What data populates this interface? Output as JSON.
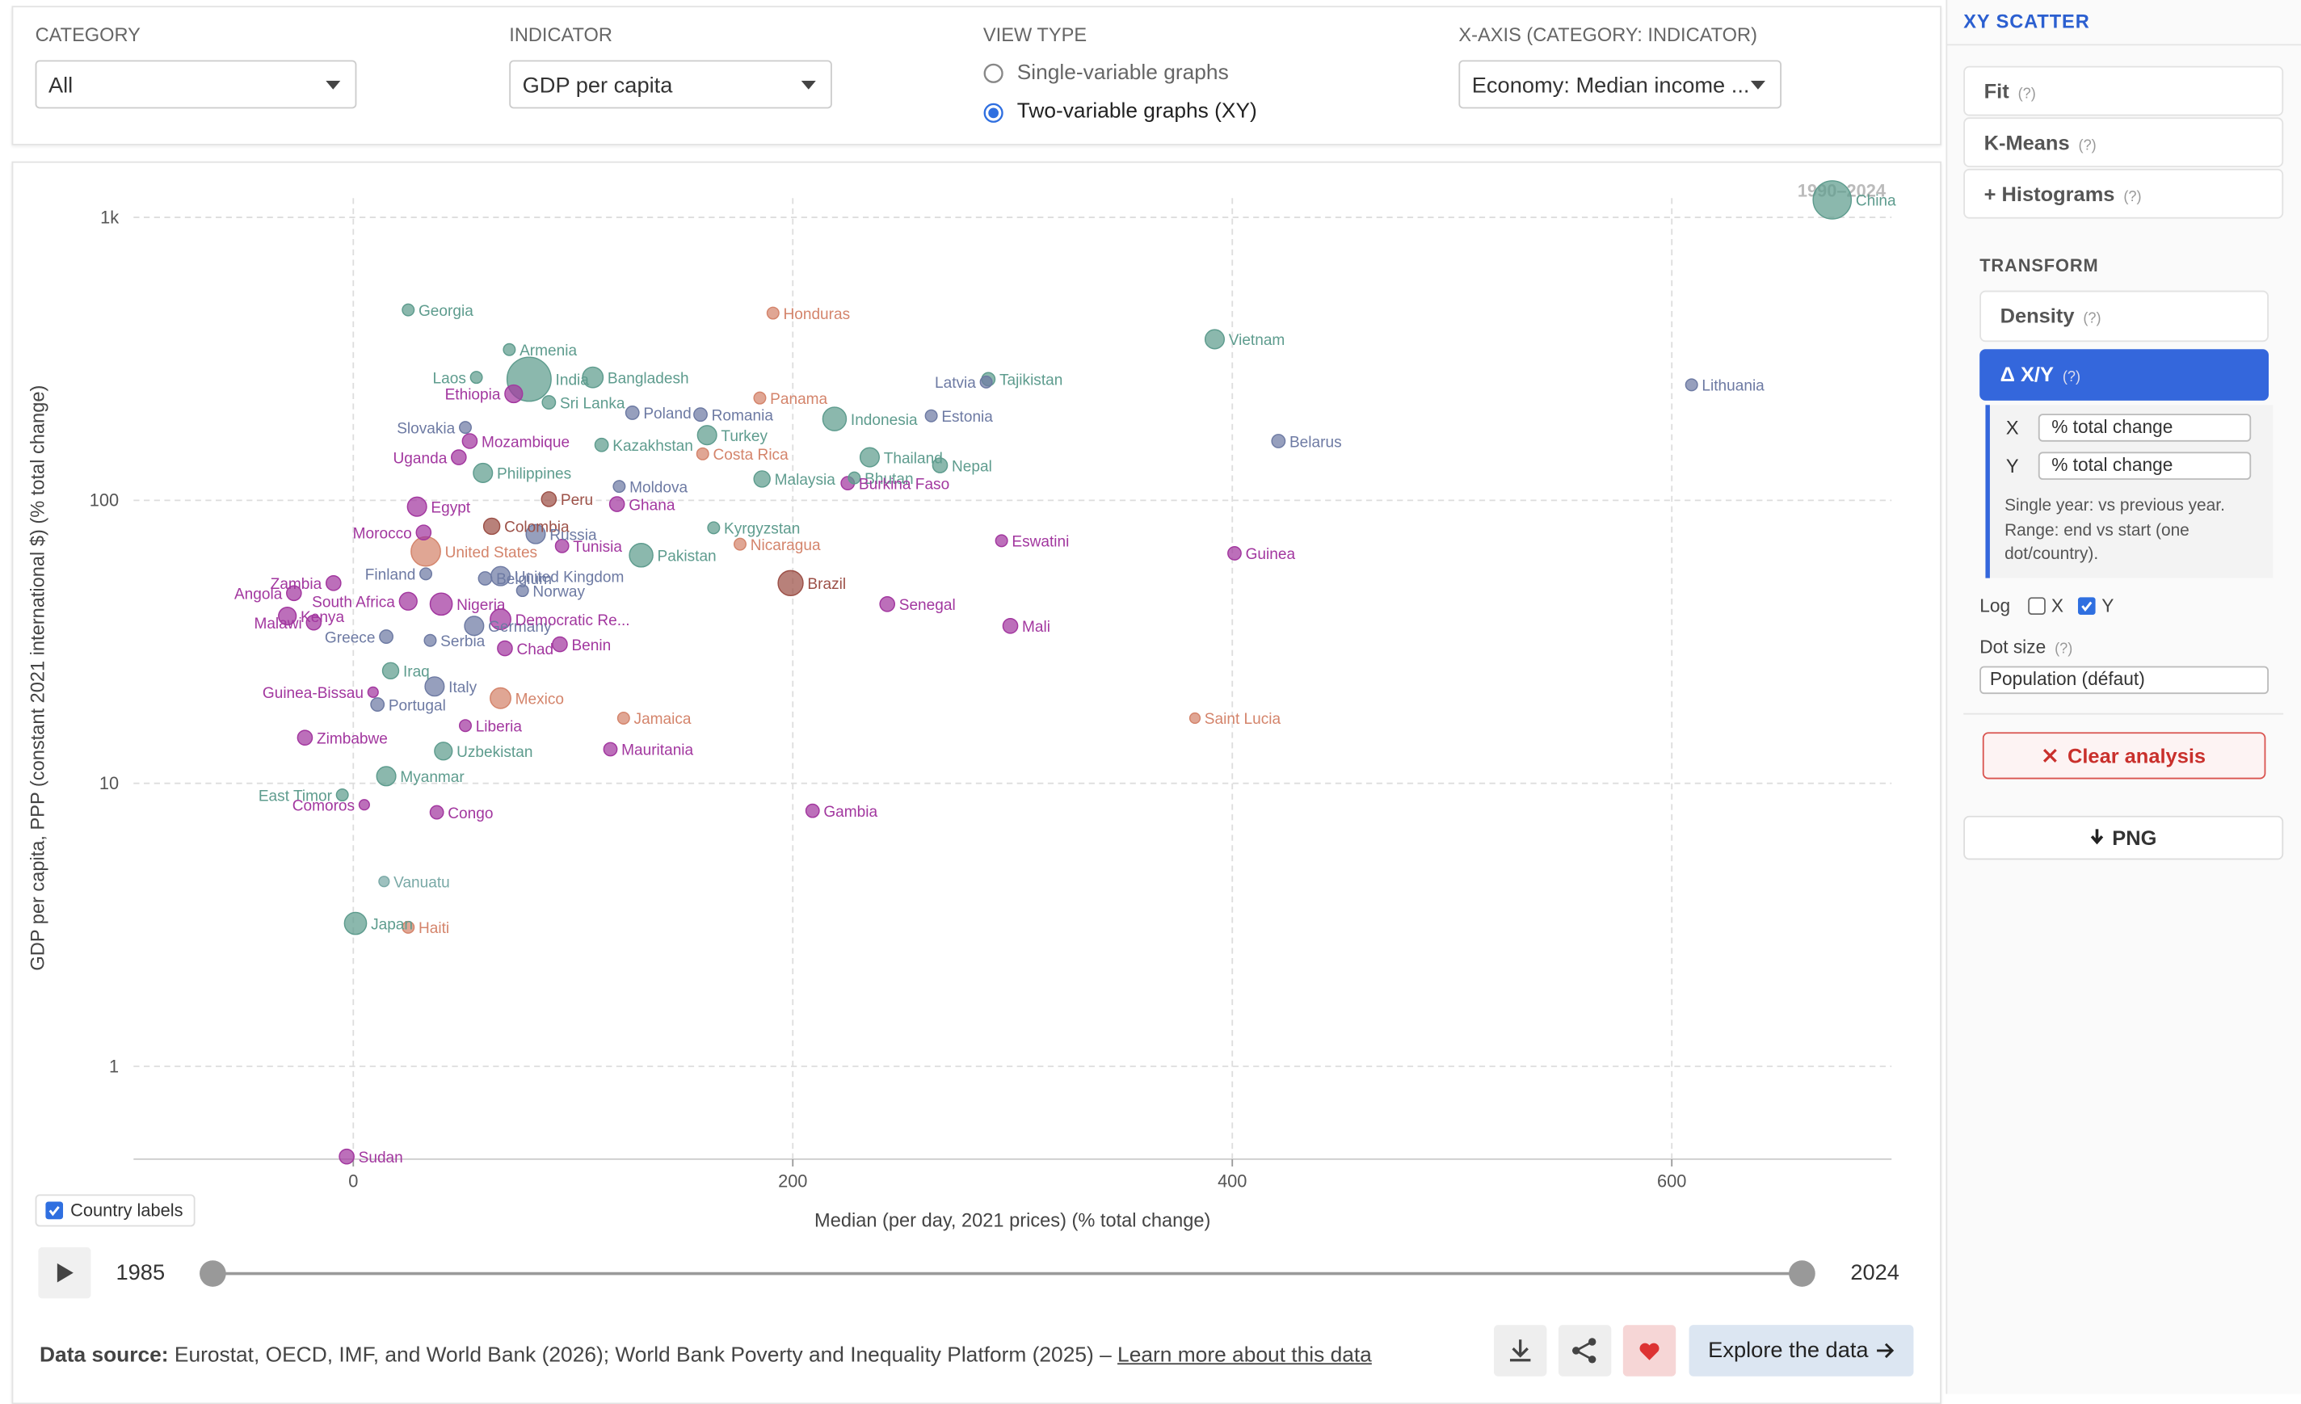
{
  "filters": [
    {
      "label": "CATEGORY",
      "value": "All"
    },
    {
      "label": "INDICATOR",
      "value": "GDP per capita"
    }
  ],
  "view_type": {
    "label": "VIEW TYPE",
    "options": [
      "Single-variable graphs",
      "Two-variable graphs (XY)"
    ]
  },
  "x_axis_select": {
    "label": "X-AXIS (CATEGORY: INDICATOR)",
    "value": "Economy: Median income ..."
  },
  "chart_data": {
    "type": "scatter",
    "x_label": "Median (per day, 2021 prices) (% total change)",
    "y_label": "GDP per capita, PPP (constant 2021 international $) (% total change)",
    "year_label": "1990–2024",
    "xlim": [
      -100,
      700
    ],
    "ylim": [
      0.47,
      1170
    ],
    "xticks": [
      0,
      200,
      400,
      600
    ],
    "yticks": [
      1,
      10,
      100,
      {
        "value": 1000,
        "label": "1k"
      }
    ],
    "log_y": true,
    "grid": true,
    "labels": [
      "Georgia",
      "Armenia",
      "Laos",
      "India",
      "Bangladesh",
      "Ethiopia",
      "Sri Lanka",
      "Slovakia",
      "Mozambique",
      "Uganda",
      "Philippines",
      "Moldova",
      "Poland",
      "Romania",
      "Kazakhstan",
      "Turkey",
      "Costa Rica",
      "Panama",
      "Honduras",
      "Indonesia",
      "Estonia",
      "Latvia",
      "Tajikistan",
      "Vietnam",
      "Lithuania",
      "Belarus",
      "Thailand",
      "Nepal",
      "Bhutan",
      "Malaysia",
      "Burkina Faso",
      "Kyrgyzstan",
      "Peru",
      "Ghana",
      "Egypt",
      "Colombia",
      "Morocco",
      "Russia",
      "United States",
      "Tunisia",
      "Pakistan",
      "Nicaragua",
      "Brazil",
      "Eswatini",
      "Guinea",
      "Senegal",
      "Mali",
      "Zambia",
      "Angola",
      "South Africa",
      "Finland",
      "Belgium",
      "United Kingdom",
      "Kenya",
      "Nigeria",
      "Norway",
      "Greece",
      "Germany",
      "Democratic Re...",
      "Malawi",
      "Serbia",
      "Chad",
      "Benin",
      "Guinea-Bissau",
      "Iraq",
      "Italy",
      "Portugal",
      "Mexico",
      "Jamaica",
      "Liberia",
      "Zimbabwe",
      "Uzbekistan",
      "Mauritania",
      "Saint Lucia",
      "Myanmar",
      "East Timor",
      "Comoros",
      "Congo",
      "Gambia",
      "Vanuatu",
      "Japan",
      "Haiti",
      "Sudan",
      "China"
    ],
    "x": [
      25,
      71,
      56,
      80,
      109,
      73,
      89,
      51,
      53,
      48,
      59,
      121,
      127,
      158,
      113,
      161,
      159,
      185,
      191,
      219,
      263,
      288,
      289,
      392,
      609,
      421,
      235,
      267,
      228,
      186,
      225,
      164,
      89,
      120,
      29,
      63,
      32,
      83,
      33,
      95,
      131,
      176,
      199,
      295,
      401,
      243,
      299,
      -9,
      -27,
      25,
      33,
      60,
      67,
      -30,
      40,
      77,
      15,
      55,
      67,
      -18,
      35,
      69,
      94,
      9,
      17,
      37,
      11,
      67,
      123,
      51,
      -22,
      41,
      117,
      383,
      15,
      -5,
      5,
      38,
      209,
      14,
      1,
      25,
      -3,
      673
    ],
    "values": [
      471,
      341,
      272,
      268,
      272,
      238,
      222,
      181,
      162,
      142,
      125,
      112,
      204,
      201,
      157,
      170,
      146,
      230,
      459,
      194,
      199,
      262,
      268,
      371,
      256,
      162,
      142,
      133,
      120,
      119,
      115,
      80,
      101,
      97,
      95,
      81,
      77,
      76,
      66,
      69,
      64,
      70,
      51,
      72,
      65,
      43,
      36,
      51,
      47,
      44,
      55,
      53,
      54,
      39,
      43,
      48,
      33,
      36,
      38,
      37,
      32,
      30,
      31,
      21,
      25,
      22,
      19,
      20,
      17,
      16,
      14.5,
      13,
      13.2,
      17,
      10.6,
      9.1,
      8.4,
      7.9,
      8,
      4.5,
      3.2,
      3.1,
      0.48,
      1153
    ],
    "sizes": [
      4,
      4,
      4,
      15,
      7,
      6,
      4.5,
      4,
      5,
      5,
      6.5,
      4,
      4.5,
      4.5,
      4.5,
      6.5,
      4,
      4,
      4,
      8,
      4,
      4,
      4.5,
      6.5,
      4,
      4.5,
      6.5,
      5,
      4,
      5.5,
      4.5,
      4,
      5,
      5,
      6.5,
      5.5,
      5,
      6.5,
      10,
      4.5,
      8,
      4,
      8.5,
      4,
      4.5,
      5,
      5,
      5,
      5,
      6,
      4,
      4.5,
      6.5,
      6,
      7.5,
      4,
      4.5,
      6.5,
      7,
      5,
      4,
      5,
      5,
      3.5,
      5.5,
      6.5,
      4.5,
      7,
      4,
      4,
      5,
      6,
      4.5,
      3.5,
      6.5,
      4,
      3.5,
      4.5,
      4.5,
      3.5,
      7.5,
      4,
      5,
      13
    ],
    "colors": [
      "#5e9c8e",
      "#5e9c8e",
      "#5e9c8e",
      "#5e9c8e",
      "#5e9c8e",
      "#a2379f",
      "#5e9c8e",
      "#6d7aa3",
      "#a2379f",
      "#a2379f",
      "#5e9c8e",
      "#6d7aa3",
      "#6d7aa3",
      "#6d7aa3",
      "#5e9c8e",
      "#5e9c8e",
      "#d4846b",
      "#d4846b",
      "#d4846b",
      "#5e9c8e",
      "#6d7aa3",
      "#6d7aa3",
      "#5e9c8e",
      "#5e9c8e",
      "#6d7aa3",
      "#6d7aa3",
      "#5e9c8e",
      "#5e9c8e",
      "#5e9c8e",
      "#5e9c8e",
      "#a2379f",
      "#5e9c8e",
      "#9c5047",
      "#a2379f",
      "#a2379f",
      "#9c5047",
      "#a2379f",
      "#6d7aa3",
      "#d4846b",
      "#a2379f",
      "#5e9c8e",
      "#d4846b",
      "#9c5047",
      "#a2379f",
      "#a2379f",
      "#a2379f",
      "#a2379f",
      "#a2379f",
      "#a2379f",
      "#a2379f",
      "#6d7aa3",
      "#6d7aa3",
      "#6d7aa3",
      "#a2379f",
      "#a2379f",
      "#6d7aa3",
      "#6d7aa3",
      "#6d7aa3",
      "#a2379f",
      "#a2379f",
      "#6d7aa3",
      "#a2379f",
      "#a2379f",
      "#a2379f",
      "#5e9c8e",
      "#6d7aa3",
      "#6d7aa3",
      "#d4846b",
      "#d4846b",
      "#a2379f",
      "#a2379f",
      "#5e9c8e",
      "#a2379f",
      "#d4846b",
      "#5e9c8e",
      "#5e9c8e",
      "#a2379f",
      "#a2379f",
      "#a2379f",
      "#79a9a6",
      "#5e9c8e",
      "#d4846b",
      "#a2379f",
      "#5e9c8e"
    ]
  },
  "country_labels": "Country labels",
  "timeline": {
    "start": "1985",
    "end": "2024"
  },
  "footer": {
    "source_label": "Data source:",
    "source": "Eurostat, OECD, IMF, and World Bank (2026); World Bank Poverty and Inequality Platform (2025) –",
    "link": "Learn more about this data",
    "explore": "Explore the data"
  },
  "sidebar": {
    "title": "XY SCATTER",
    "help": "(?)",
    "sections": [
      "Fit",
      "K-Means",
      "+ Histograms"
    ],
    "transform": {
      "title": "TRANSFORM",
      "options": [
        "Density",
        "Δ X/Y"
      ],
      "x_label": "X",
      "x_value": "% total change",
      "y_label": "Y",
      "y_value": "% total change",
      "note": "Single year: vs previous year. Range: end vs start (one dot/country)."
    },
    "log": {
      "label": "Log",
      "x": "X",
      "y": "Y"
    },
    "dot_size": {
      "label": "Dot size",
      "value": "Population (défaut)"
    },
    "clear": "Clear analysis",
    "png": "PNG"
  }
}
